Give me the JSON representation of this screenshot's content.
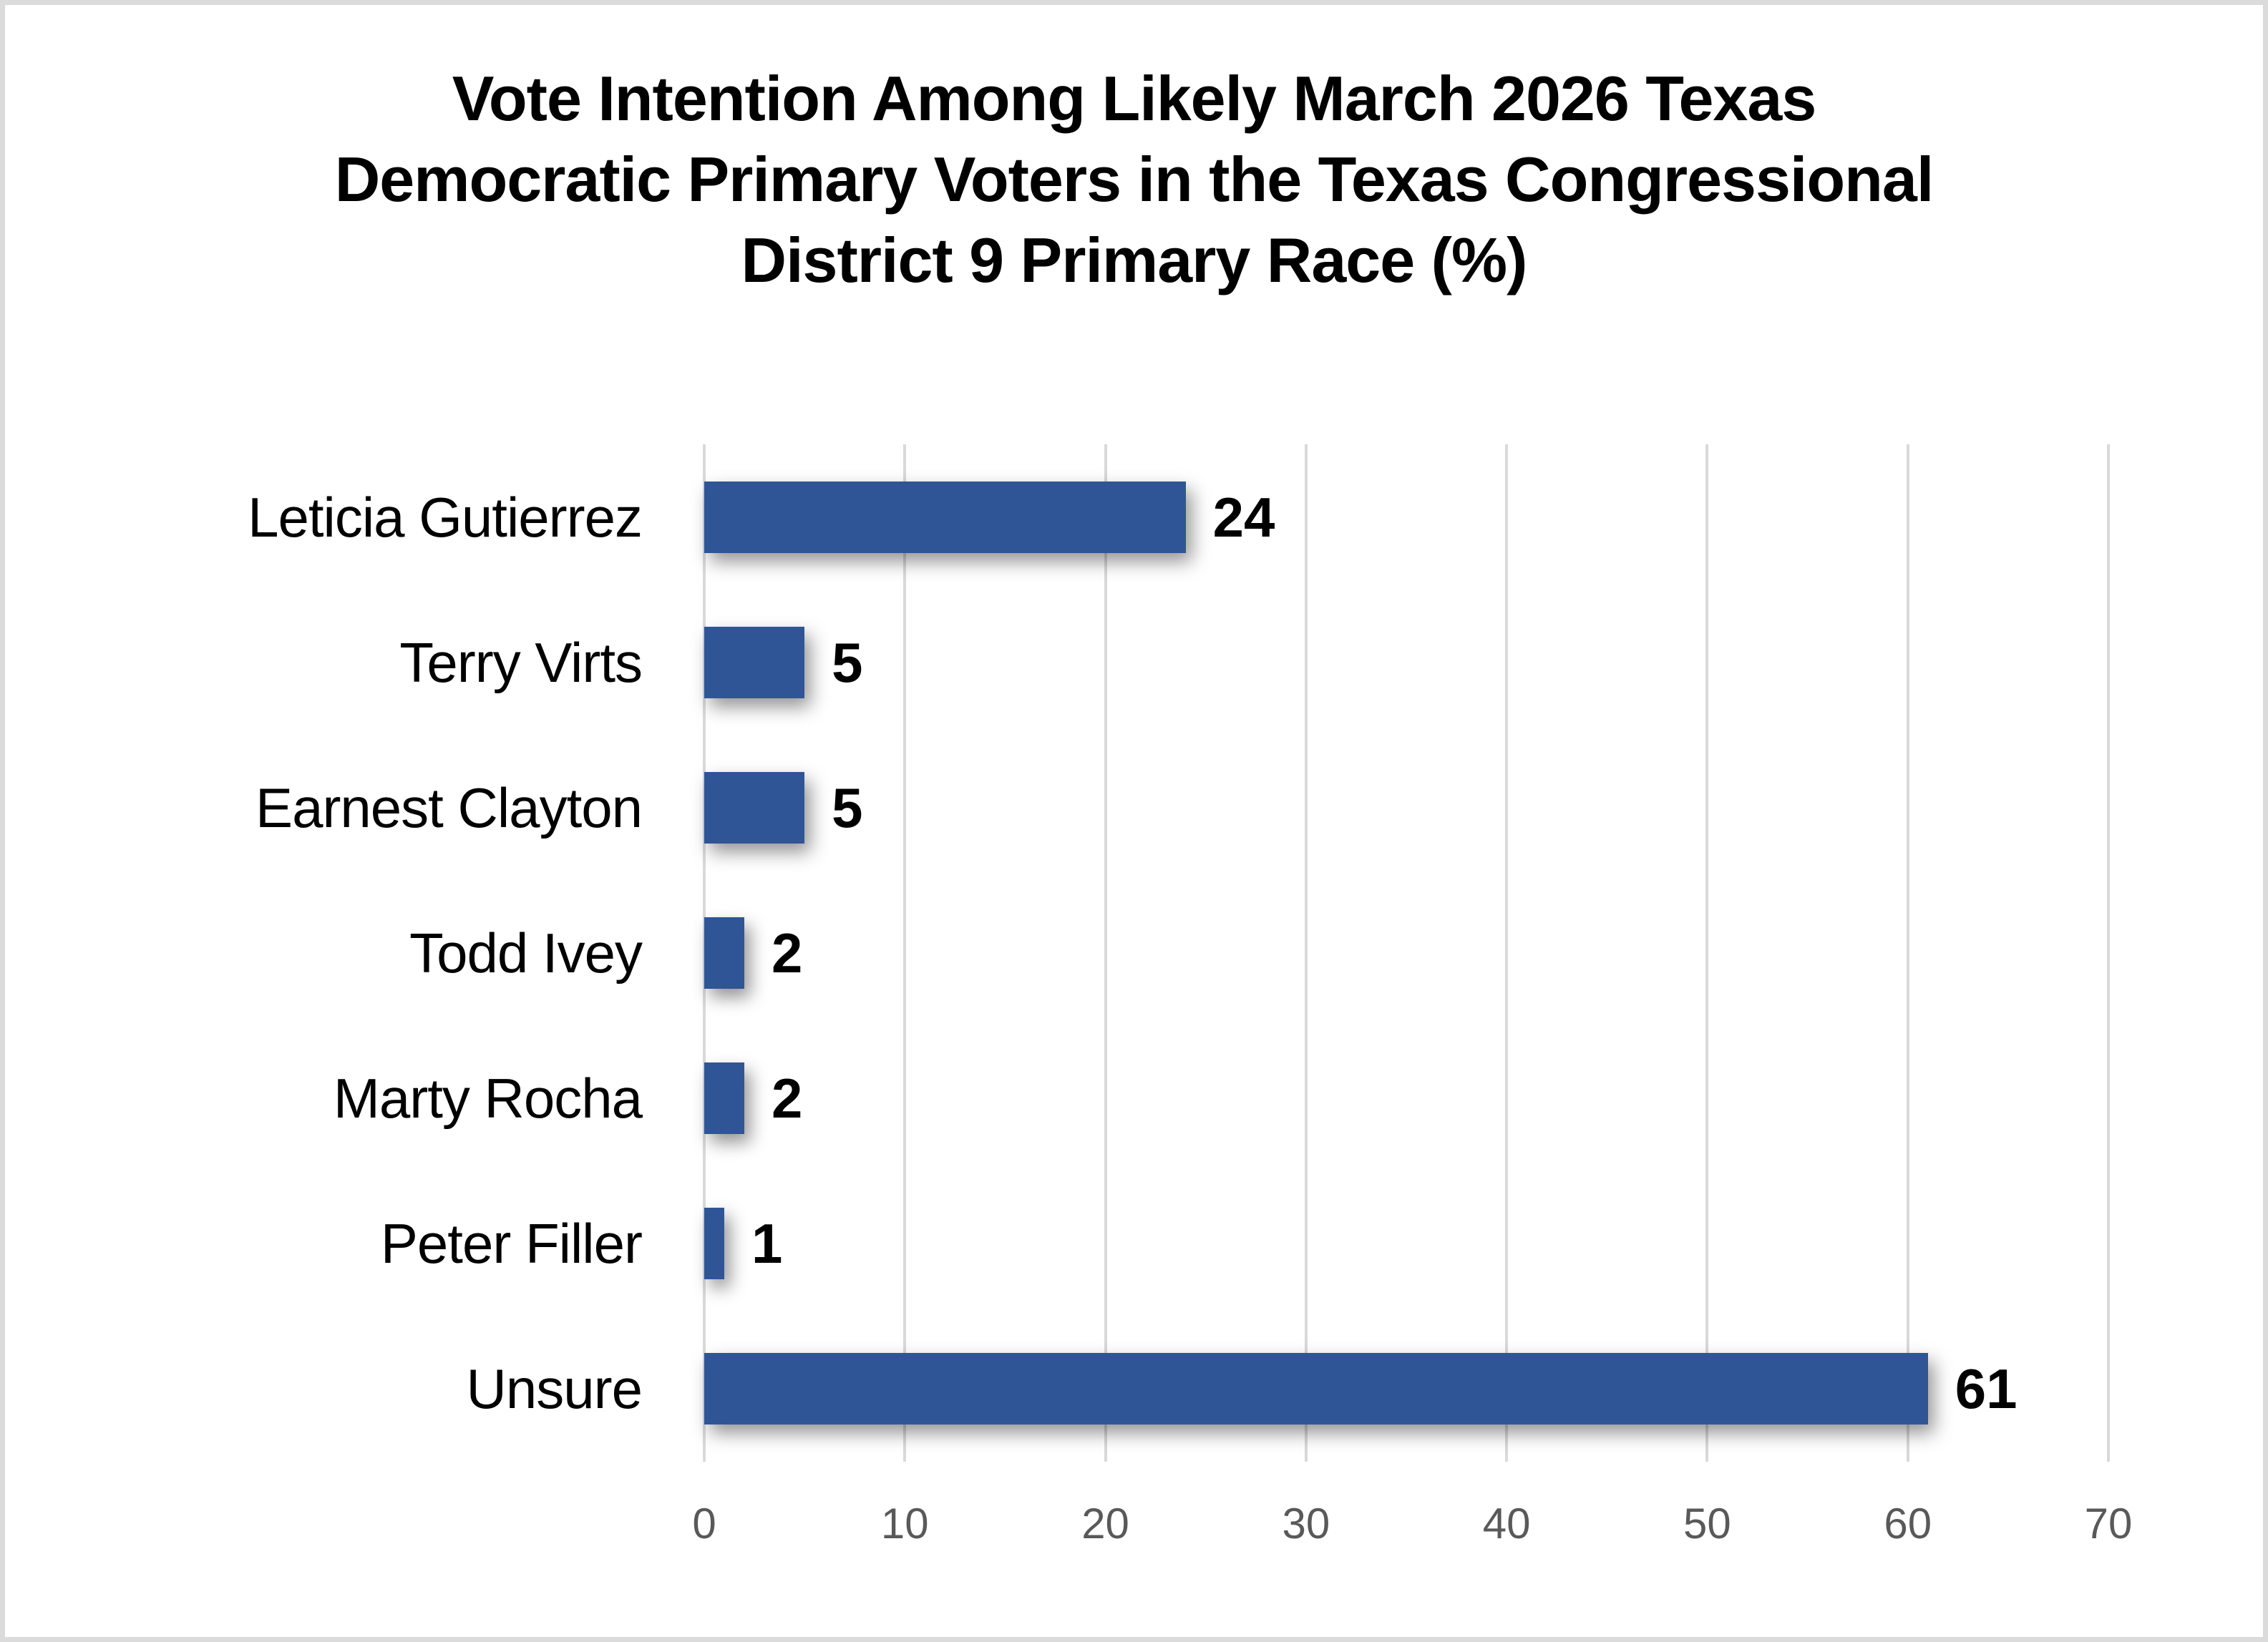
{
  "frame": {
    "background_color": "#FFFFFF",
    "border_color": "#DBDBDB"
  },
  "chart_data": {
    "type": "bar",
    "orientation": "horizontal",
    "title": "Vote Intention Among Likely March 2026 Texas Democratic Primary Voters in the Texas Congressional District 9 Primary Race (%)",
    "title_lines": [
      "Vote Intention Among Likely March 2026 Texas",
      "Democratic Primary Voters in the Texas Congressional",
      "District 9 Primary Race (%)"
    ],
    "categories": [
      "Leticia Gutierrez",
      "Terry Virts",
      "Earnest Clayton",
      "Todd Ivey",
      "Marty Rocha",
      "Peter Filler",
      "Unsure"
    ],
    "values": [
      24,
      5,
      5,
      2,
      2,
      1,
      61
    ],
    "data_labels": [
      "24",
      "5",
      "5",
      "2",
      "2",
      "1",
      "61"
    ],
    "xlabel": "",
    "ylabel": "",
    "xlim": [
      0,
      70
    ],
    "x_ticks": [
      0,
      10,
      20,
      30,
      40,
      50,
      60,
      70
    ],
    "x_tick_labels": [
      "0",
      "10",
      "20",
      "30",
      "40",
      "50",
      "60",
      "70"
    ],
    "grid": true,
    "legend": false,
    "bar_color": "#2F5597",
    "gridline_color": "#D9D9D9",
    "tick_label_color": "#595959",
    "title_color": "#000000",
    "label_color": "#000000"
  }
}
